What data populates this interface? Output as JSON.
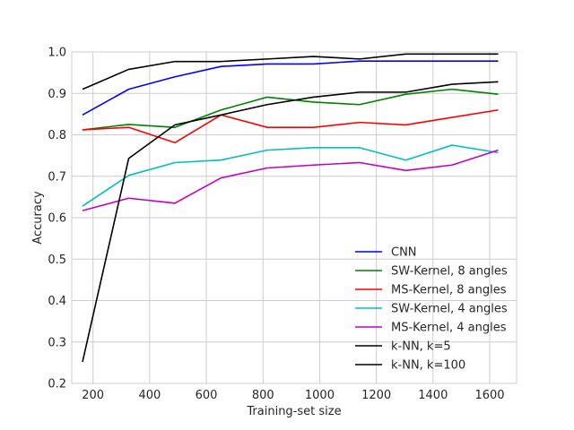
{
  "chart_data": {
    "type": "line",
    "title": "",
    "xlabel": "Training-set size",
    "ylabel": "Accuracy",
    "xlim": [
      125,
      1695
    ],
    "ylim": [
      0.2,
      1.0
    ],
    "xticks": [
      200,
      400,
      600,
      800,
      1000,
      1200,
      1400,
      1600
    ],
    "yticks": [
      0.2,
      0.3,
      0.4,
      0.5,
      0.6,
      0.7,
      0.8,
      0.9,
      1.0
    ],
    "xtick_labels": [
      "200",
      "400",
      "600",
      "800",
      "1000",
      "1200",
      "1400",
      "1600"
    ],
    "ytick_labels": [
      "0.2",
      "0.3",
      "0.4",
      "0.5",
      "0.6",
      "0.7",
      "0.8",
      "0.9",
      "1.0"
    ],
    "grid": true,
    "legend_position": "lower-right",
    "x": [
      163,
      326,
      489,
      652,
      815,
      978,
      1141,
      1304,
      1467,
      1630
    ],
    "series": [
      {
        "name": "CNN",
        "color": "#0000ff",
        "values": [
          0.848,
          0.91,
          0.94,
          0.965,
          0.971,
          0.971,
          0.978,
          0.978,
          0.978,
          0.978
        ]
      },
      {
        "name": "SW-Kernel, 8 angles",
        "color": "#008000",
        "values": [
          0.812,
          0.825,
          0.818,
          0.86,
          0.891,
          0.879,
          0.873,
          0.898,
          0.91,
          0.898
        ]
      },
      {
        "name": "MS-Kernel, 8 angles",
        "color": "#ff0000",
        "values": [
          0.812,
          0.818,
          0.781,
          0.848,
          0.818,
          0.818,
          0.83,
          0.824,
          0.842,
          0.86
        ]
      },
      {
        "name": "SW-Kernel, 4 angles",
        "color": "#00bfbf",
        "values": [
          0.628,
          0.702,
          0.733,
          0.739,
          0.763,
          0.769,
          0.769,
          0.739,
          0.775,
          0.757
        ]
      },
      {
        "name": "MS-Kernel, 4 angles",
        "color": "#bf00bf",
        "values": [
          0.617,
          0.647,
          0.635,
          0.696,
          0.72,
          0.727,
          0.733,
          0.714,
          0.727,
          0.763
        ]
      },
      {
        "name": "k-NN, k=5",
        "color": "#000000",
        "values": [
          0.252,
          0.743,
          0.824,
          0.848,
          0.873,
          0.891,
          0.903,
          0.903,
          0.922,
          0.928
        ]
      },
      {
        "name": "k-NN, k=100",
        "color": "#000000",
        "values": [
          0.91,
          0.958,
          0.977,
          0.977,
          0.983,
          0.989,
          0.983,
          0.995,
          0.995,
          0.995
        ]
      }
    ]
  }
}
